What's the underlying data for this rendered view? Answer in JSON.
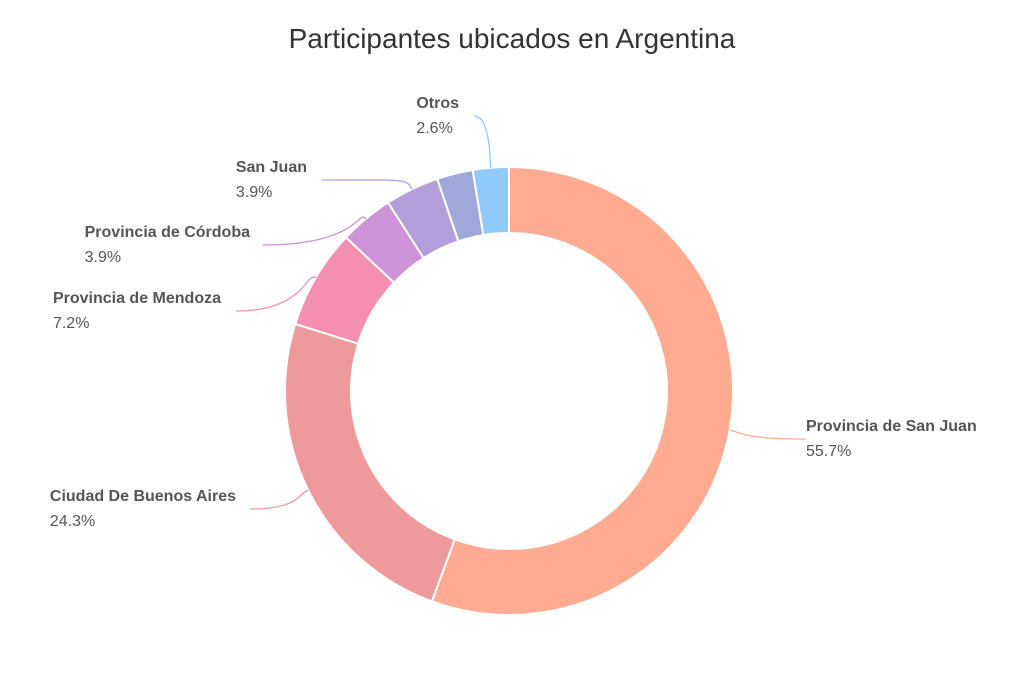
{
  "chart_data": {
    "type": "pie",
    "variant": "donut",
    "title": "Participantes ubicados en Argentina",
    "unit": "%",
    "slices": [
      {
        "name": "Provincia de San Juan",
        "value": 55.7,
        "label": "55.7%",
        "color": "#FFAB91"
      },
      {
        "name": "Ciudad De Buenos Aires",
        "value": 24.3,
        "label": "24.3%",
        "color": "#EF9A9A"
      },
      {
        "name": "Provincia de Mendoza",
        "value": 7.2,
        "label": "7.2%",
        "color": "#F48FB1"
      },
      {
        "name": "Provincia de Córdoba",
        "value": 3.9,
        "label": "3.9%",
        "color": "#CE93D8"
      },
      {
        "name": "San Juan",
        "value": 3.9,
        "label": "3.9%",
        "color": "#B39DDB"
      },
      {
        "name": "",
        "value": 2.6,
        "label": "",
        "color": "#9FA8DA"
      },
      {
        "name": "Otros",
        "value": 2.6,
        "label": "2.6%",
        "color": "#90CAF9"
      }
    ]
  }
}
